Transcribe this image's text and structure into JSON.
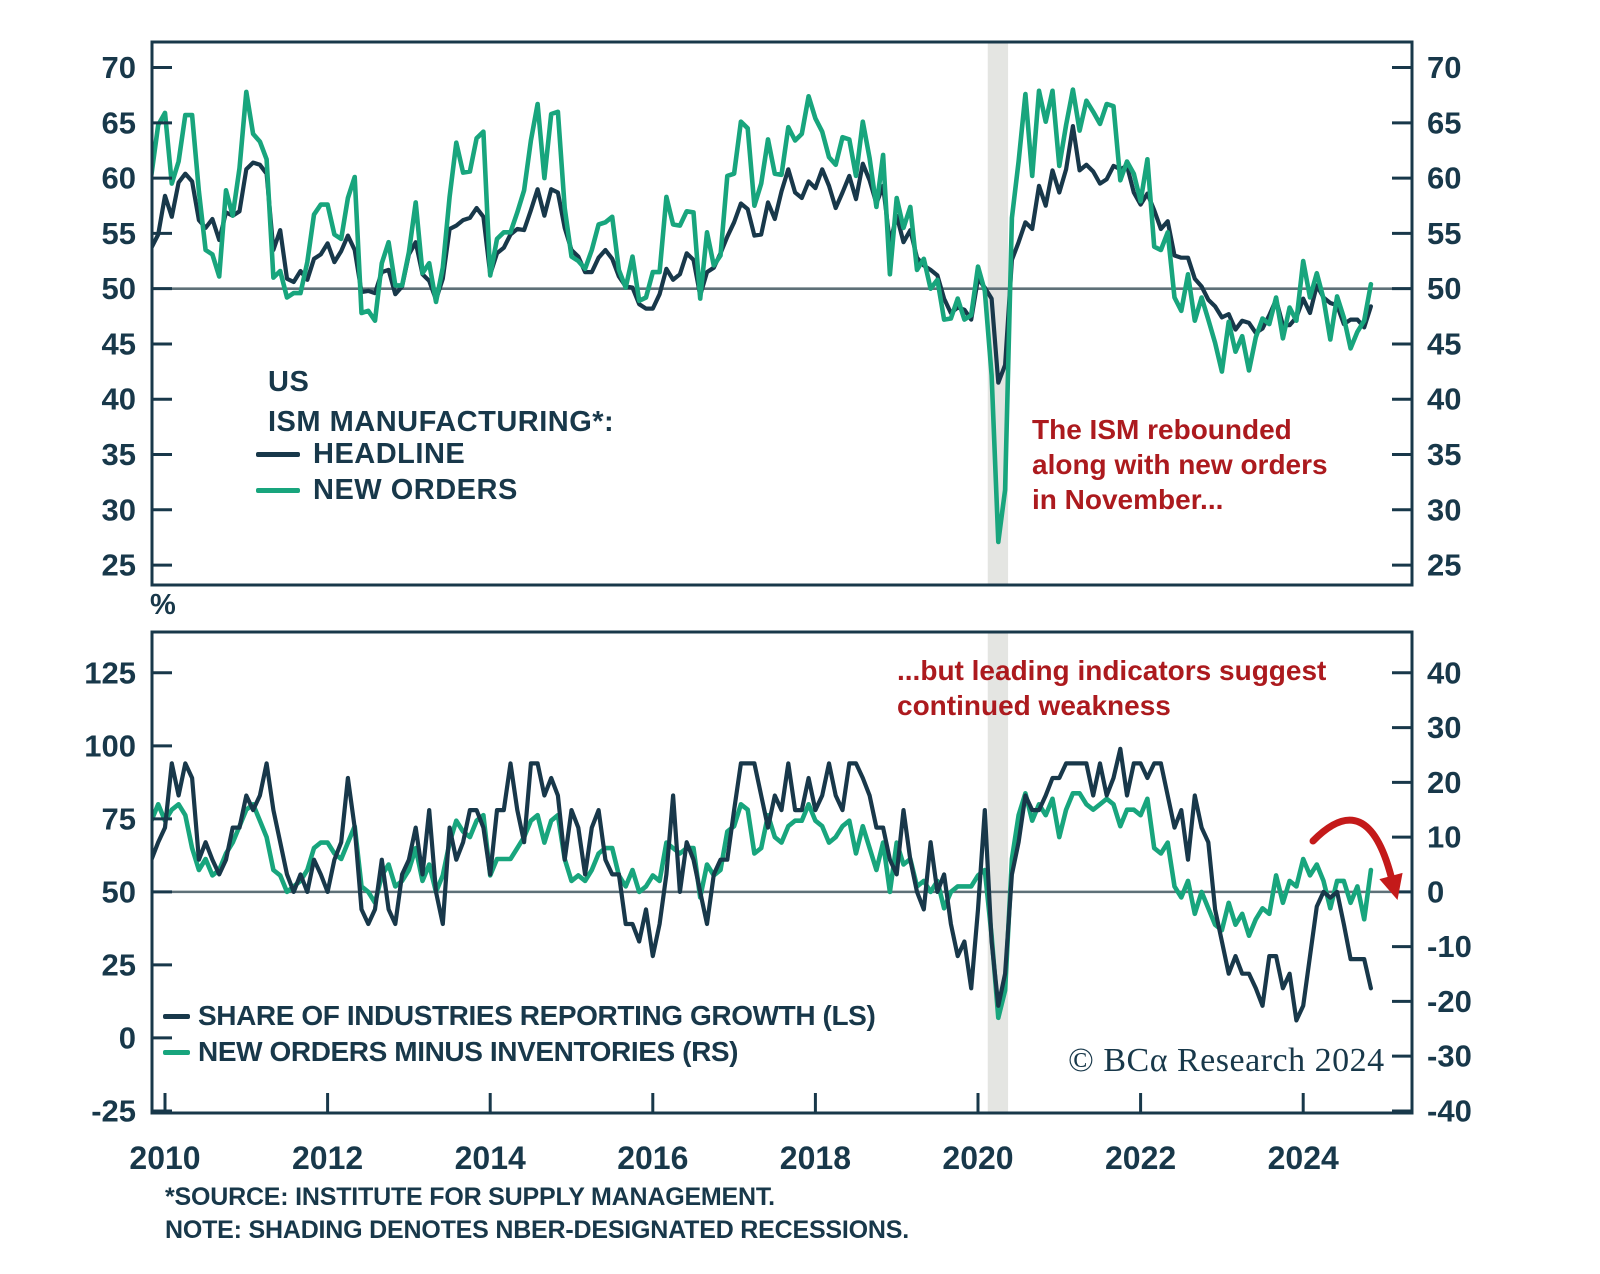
{
  "colors": {
    "navy": "#18384A",
    "green": "#18A57D",
    "red_text": "#AC1A1E",
    "red_arrow": "#C41A1A",
    "ref_line": "#5E7078",
    "recession_band": "#E4E5E2",
    "background": "#FFFFFF"
  },
  "top_legend": {
    "line1": "US",
    "line2": "ISM MANUFACTURING*:"
  },
  "annotations": {
    "top": [
      "The ISM rebounded",
      "along with new orders",
      "in November..."
    ],
    "bottom": [
      "...but leading indicators suggest",
      "continued weakness"
    ]
  },
  "percent_label": "%",
  "logo": "© BCα Research 2024",
  "source_note": {
    "line1": "*SOURCE: INSTITUTE FOR SUPPLY MANAGEMENT.",
    "line2": "NOTE: SHADING DENOTES NBER-DESIGNATED RECESSIONS."
  },
  "chart_data": [
    {
      "type": "line",
      "title": "US ISM MANUFACTURING*",
      "x": {
        "start": "2009-11",
        "freq": "monthly",
        "tick_years": [
          2010,
          2012,
          2014,
          2016,
          2018,
          2020,
          2022,
          2024
        ]
      },
      "y_axis": {
        "side": "both",
        "ticks": [
          70,
          65,
          60,
          55,
          50,
          45,
          40,
          35,
          30,
          25
        ],
        "range": [
          23,
          72.5
        ],
        "ref_line": 50
      },
      "shading": [
        {
          "start": 2020.12,
          "end": 2020.37,
          "label": "NBER-designated recession"
        }
      ],
      "series": [
        {
          "name": "HEADLINE",
          "color": "#18384A",
          "values": [
            53.7,
            54.9,
            58.4,
            56.5,
            59.6,
            60.4,
            59.7,
            56.2,
            55.5,
            56.3,
            54.4,
            56.9,
            56.6,
            57.0,
            60.8,
            61.4,
            61.2,
            60.4,
            53.5,
            55.3,
            50.9,
            50.6,
            51.6,
            50.8,
            52.7,
            53.1,
            54.1,
            52.4,
            53.4,
            54.8,
            53.5,
            49.7,
            49.8,
            49.6,
            51.5,
            51.7,
            49.5,
            50.2,
            53.1,
            54.2,
            51.3,
            50.7,
            49.0,
            50.9,
            55.4,
            55.7,
            56.2,
            56.4,
            57.3,
            56.5,
            51.3,
            53.2,
            53.7,
            54.9,
            55.4,
            55.3,
            57.1,
            59.0,
            56.6,
            59.0,
            58.7,
            55.5,
            53.5,
            52.9,
            51.5,
            51.5,
            52.8,
            53.5,
            52.7,
            51.1,
            50.2,
            50.1,
            48.6,
            48.2,
            48.2,
            49.5,
            51.8,
            50.8,
            51.3,
            53.2,
            52.6,
            49.4,
            51.5,
            51.9,
            53.2,
            54.7,
            56.0,
            57.7,
            57.2,
            54.8,
            54.9,
            57.8,
            56.3,
            58.8,
            60.8,
            58.7,
            58.2,
            59.7,
            59.1,
            60.8,
            59.3,
            57.3,
            58.7,
            60.2,
            58.1,
            61.3,
            59.8,
            57.7,
            59.3,
            54.1,
            56.6,
            54.2,
            55.3,
            52.8,
            52.1,
            51.7,
            51.2,
            49.1,
            47.8,
            48.3,
            48.1,
            47.2,
            50.9,
            50.1,
            49.1,
            41.5,
            43.1,
            52.6,
            54.2,
            56.0,
            55.4,
            59.3,
            57.5,
            60.7,
            58.7,
            60.8,
            64.7,
            60.7,
            61.2,
            60.6,
            59.5,
            59.9,
            61.1,
            60.8,
            61.1,
            58.7,
            57.6,
            58.6,
            57.1,
            55.4,
            56.1,
            53.0,
            52.8,
            52.8,
            50.9,
            50.2,
            49.0,
            48.4,
            47.4,
            47.7,
            46.3,
            47.1,
            46.9,
            46.0,
            46.4,
            47.6,
            49.0,
            46.7,
            46.7,
            47.4,
            49.1,
            47.8,
            50.3,
            49.2,
            48.7,
            48.5,
            46.8,
            47.2,
            47.2,
            46.5,
            48.4
          ]
        },
        {
          "name": "NEW ORDERS",
          "color": "#18A57D",
          "values": [
            60.3,
            64.8,
            65.9,
            59.5,
            61.5,
            65.7,
            65.7,
            58.8,
            53.5,
            53.1,
            51.1,
            58.9,
            56.6,
            60.9,
            67.8,
            64.0,
            63.3,
            61.7,
            51.0,
            51.6,
            49.2,
            49.6,
            49.6,
            52.4,
            56.7,
            57.6,
            57.6,
            54.9,
            54.5,
            58.2,
            60.1,
            47.8,
            48.0,
            47.1,
            52.3,
            54.2,
            50.3,
            50.3,
            53.3,
            57.8,
            51.4,
            52.3,
            48.8,
            51.9,
            58.3,
            63.2,
            60.5,
            60.6,
            63.6,
            64.2,
            51.2,
            54.5,
            55.1,
            55.1,
            56.9,
            58.9,
            63.4,
            66.7,
            60.0,
            65.8,
            66.0,
            57.3,
            52.9,
            52.5,
            51.8,
            53.5,
            55.8,
            56.0,
            56.5,
            51.7,
            50.1,
            52.9,
            48.9,
            49.2,
            51.5,
            51.5,
            58.3,
            55.8,
            55.7,
            57.0,
            56.9,
            49.1,
            55.1,
            52.1,
            53.0,
            60.2,
            60.4,
            65.1,
            64.5,
            57.5,
            59.5,
            63.5,
            60.4,
            60.3,
            64.6,
            63.4,
            64.0,
            67.4,
            65.4,
            64.2,
            61.9,
            61.2,
            63.7,
            63.5,
            60.2,
            65.1,
            61.8,
            57.4,
            62.1,
            51.3,
            58.2,
            55.5,
            57.4,
            51.7,
            52.7,
            50.0,
            50.8,
            47.2,
            47.3,
            49.1,
            47.2,
            47.6,
            52.0,
            49.8,
            42.2,
            27.1,
            31.8,
            56.4,
            61.5,
            67.6,
            60.2,
            67.9,
            65.1,
            67.9,
            61.1,
            64.8,
            68.0,
            64.3,
            67.0,
            66.0,
            64.9,
            66.7,
            66.5,
            59.8,
            61.5,
            60.4,
            57.9,
            61.7,
            53.8,
            53.5,
            55.1,
            49.2,
            48.0,
            51.3,
            47.1,
            49.2,
            47.2,
            45.1,
            42.5,
            47.0,
            44.3,
            45.7,
            42.6,
            45.6,
            47.3,
            46.8,
            49.2,
            45.5,
            48.3,
            47.1,
            52.5,
            49.2,
            51.4,
            49.1,
            45.4,
            49.3,
            47.4,
            44.6,
            46.1,
            47.1,
            50.4
          ]
        }
      ]
    },
    {
      "type": "line",
      "x": {
        "start": "2009-11",
        "freq": "monthly",
        "tick_years": [
          2010,
          2012,
          2014,
          2016,
          2018,
          2020,
          2022,
          2024
        ]
      },
      "y_left": {
        "label": "%",
        "ticks": [
          125,
          100,
          75,
          50,
          25,
          0,
          -25
        ],
        "range": [
          -26,
          139.5
        ],
        "ref_line": 50
      },
      "y_right": {
        "ticks": [
          40,
          30,
          20,
          10,
          0,
          -10,
          -20,
          -30,
          -40
        ],
        "range": [
          -40.3,
          40.2
        ]
      },
      "shading": [
        {
          "start": 2020.12,
          "end": 2020.37,
          "label": "NBER-designated recession"
        }
      ],
      "series": [
        {
          "name": "SHARE OF INDUSTRIES REPORTING GROWTH (LS)",
          "axis": "left",
          "color": "#18384A",
          "values": [
            61,
            67,
            72,
            94,
            83,
            94,
            89,
            61,
            67,
            61,
            56,
            61,
            72,
            72,
            83,
            78,
            83,
            94,
            78,
            67,
            56,
            50,
            56,
            50,
            61,
            56,
            50,
            61,
            67,
            89,
            72,
            44,
            39,
            44,
            61,
            44,
            39,
            56,
            61,
            72,
            56,
            78,
            50,
            39,
            72,
            61,
            67,
            78,
            78,
            72,
            56,
            78,
            78,
            94,
            78,
            67,
            94,
            94,
            83,
            89,
            83,
            61,
            78,
            72,
            56,
            72,
            78,
            61,
            56,
            56,
            39,
            39,
            33,
            44,
            28,
            39,
            56,
            83,
            50,
            67,
            61,
            50,
            39,
            56,
            61,
            61,
            78,
            94,
            94,
            94,
            83,
            72,
            83,
            78,
            94,
            78,
            78,
            89,
            78,
            83,
            94,
            83,
            78,
            94,
            94,
            89,
            83,
            72,
            72,
            61,
            56,
            78,
            61,
            50,
            44,
            67,
            50,
            56,
            39,
            28,
            33,
            17,
            44,
            78,
            33,
            11,
            22,
            56,
            67,
            83,
            78,
            78,
            83,
            89,
            89,
            94,
            94,
            94,
            94,
            83,
            94,
            83,
            89,
            99,
            83,
            94,
            94,
            89,
            94,
            94,
            83,
            72,
            78,
            61,
            83,
            72,
            67,
            44,
            33,
            22,
            28,
            22,
            22,
            17,
            11,
            28,
            28,
            17,
            22,
            6,
            11,
            28,
            45,
            50,
            48,
            50,
            39,
            27,
            27,
            27,
            17
          ]
        },
        {
          "name": "NEW ORDERS MINUS INVENTORIES (RS)",
          "axis": "right",
          "color": "#18A57D",
          "values": [
            13,
            16,
            13,
            15,
            16,
            14,
            8,
            4,
            6,
            3,
            4,
            7,
            9,
            12,
            15,
            16,
            13,
            10,
            4,
            3,
            0,
            1,
            2,
            4,
            8,
            9,
            9,
            7,
            6,
            9,
            12,
            1,
            0,
            -2,
            3,
            5,
            1,
            2,
            4,
            8,
            2,
            5,
            0,
            3,
            9,
            13,
            11,
            10,
            13,
            14,
            3,
            6,
            6,
            6,
            8,
            10,
            13,
            14,
            9,
            13,
            14,
            6,
            2,
            3,
            2,
            4,
            7,
            8,
            8,
            3,
            1,
            4,
            0,
            1,
            3,
            2,
            9,
            8,
            7,
            8,
            8,
            -1,
            5,
            3,
            4,
            11,
            12,
            16,
            15,
            7,
            8,
            14,
            10,
            9,
            12,
            13,
            13,
            16,
            13,
            12,
            9,
            10,
            12,
            13,
            7,
            12,
            8,
            4,
            9,
            0,
            9,
            5,
            6,
            1,
            2,
            0,
            2,
            -3,
            0,
            1,
            1,
            1,
            3,
            4,
            -8,
            -23,
            -18,
            6,
            14,
            18,
            13,
            16,
            14,
            17,
            10,
            15,
            18,
            18,
            16,
            15,
            16,
            17,
            16,
            12,
            15,
            15,
            14,
            17,
            8,
            7,
            9,
            1,
            -1,
            2,
            -4,
            0,
            -3,
            -6,
            -7,
            -2,
            -6,
            -4,
            -8,
            -5,
            -3,
            -4,
            3,
            -2,
            2,
            1,
            6,
            3,
            5,
            2,
            -3,
            2,
            2,
            -2,
            1,
            -5,
            4
          ]
        }
      ]
    }
  ]
}
